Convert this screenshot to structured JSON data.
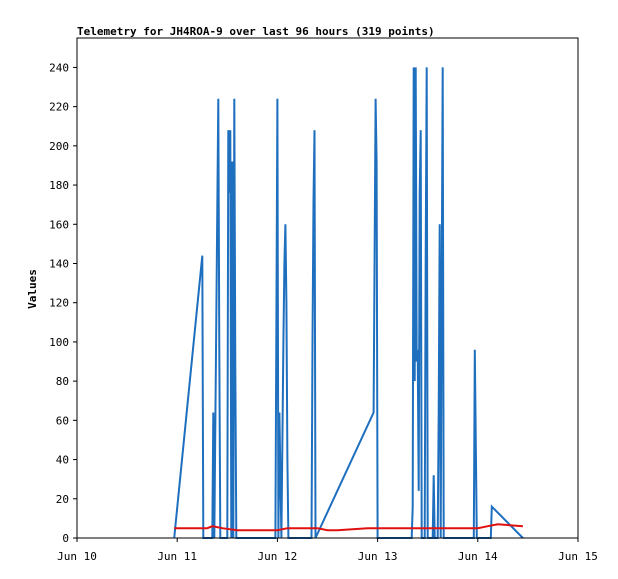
{
  "chart_data": {
    "type": "line",
    "title": "Telemetry for JH4ROA-9 over last 96 hours (319 points)",
    "xlabel": "",
    "ylabel": "Values",
    "x_tick_labels": [
      "Jun 10",
      "Jun 11",
      "Jun 12",
      "Jun 13",
      "Jun 14",
      "Jun 15"
    ],
    "x_ticks": [
      0,
      1,
      2,
      3,
      4,
      5
    ],
    "xlim": [
      0,
      5
    ],
    "y_tick_labels": [
      "0",
      "20",
      "40",
      "60",
      "80",
      "100",
      "120",
      "140",
      "160",
      "180",
      "200",
      "220",
      "240"
    ],
    "y_ticks": [
      0,
      20,
      40,
      60,
      80,
      100,
      120,
      140,
      160,
      180,
      200,
      220,
      240
    ],
    "ylim": [
      0,
      255
    ],
    "grid": false,
    "series": [
      {
        "color": "#1f6fbf",
        "points": [
          [
            0.97,
            0
          ],
          [
            1.25,
            144
          ],
          [
            1.26,
            0
          ],
          [
            1.35,
            0
          ],
          [
            1.36,
            64
          ],
          [
            1.37,
            0
          ],
          [
            1.41,
            224
          ],
          [
            1.42,
            96
          ],
          [
            1.43,
            0
          ],
          [
            1.5,
            0
          ],
          [
            1.51,
            208
          ],
          [
            1.52,
            176
          ],
          [
            1.53,
            208
          ],
          [
            1.54,
            0
          ],
          [
            1.55,
            192
          ],
          [
            1.56,
            0
          ],
          [
            1.57,
            224
          ],
          [
            1.58,
            88
          ],
          [
            1.59,
            0
          ],
          [
            1.98,
            0
          ],
          [
            1.99,
            112
          ],
          [
            2.0,
            224
          ],
          [
            2.01,
            0
          ],
          [
            2.02,
            64
          ],
          [
            2.03,
            32
          ],
          [
            2.04,
            0
          ],
          [
            2.06,
            100
          ],
          [
            2.07,
            140
          ],
          [
            2.08,
            160
          ],
          [
            2.09,
            120
          ],
          [
            2.1,
            40
          ],
          [
            2.11,
            0
          ],
          [
            2.34,
            0
          ],
          [
            2.35,
            100
          ],
          [
            2.36,
            172
          ],
          [
            2.37,
            208
          ],
          [
            2.38,
            0
          ],
          [
            2.96,
            64
          ],
          [
            2.98,
            224
          ],
          [
            2.99,
            192
          ],
          [
            3.0,
            0
          ],
          [
            3.34,
            0
          ],
          [
            3.35,
            16
          ],
          [
            3.36,
            240
          ],
          [
            3.37,
            80
          ],
          [
            3.38,
            240
          ],
          [
            3.39,
            90
          ],
          [
            3.4,
            96
          ],
          [
            3.41,
            24
          ],
          [
            3.42,
            176
          ],
          [
            3.43,
            208
          ],
          [
            3.44,
            0
          ],
          [
            3.47,
            0
          ],
          [
            3.48,
            144
          ],
          [
            3.49,
            240
          ],
          [
            3.5,
            0
          ],
          [
            3.55,
            0
          ],
          [
            3.56,
            32
          ],
          [
            3.57,
            0
          ],
          [
            3.6,
            0
          ],
          [
            3.61,
            64
          ],
          [
            3.62,
            160
          ],
          [
            3.63,
            0
          ],
          [
            3.64,
            128
          ],
          [
            3.65,
            240
          ],
          [
            3.66,
            0
          ],
          [
            3.96,
            0
          ],
          [
            3.97,
            96
          ],
          [
            3.98,
            48
          ],
          [
            3.99,
            0
          ],
          [
            4.13,
            0
          ],
          [
            4.14,
            16
          ],
          [
            4.45,
            0
          ]
        ]
      },
      {
        "color": "#e01010",
        "points": [
          [
            0.97,
            5
          ],
          [
            1.3,
            5
          ],
          [
            1.35,
            6
          ],
          [
            1.45,
            5
          ],
          [
            1.6,
            4
          ],
          [
            2.0,
            4
          ],
          [
            2.1,
            5
          ],
          [
            2.4,
            5
          ],
          [
            2.5,
            4
          ],
          [
            2.6,
            4
          ],
          [
            2.9,
            5
          ],
          [
            3.2,
            5
          ],
          [
            3.5,
            5
          ],
          [
            3.7,
            5
          ],
          [
            4.0,
            5
          ],
          [
            4.1,
            6
          ],
          [
            4.2,
            7
          ],
          [
            4.45,
            6
          ]
        ]
      },
      {
        "color": "#000000",
        "points": [
          [
            0.97,
            0
          ],
          [
            4.45,
            0
          ]
        ]
      }
    ]
  }
}
